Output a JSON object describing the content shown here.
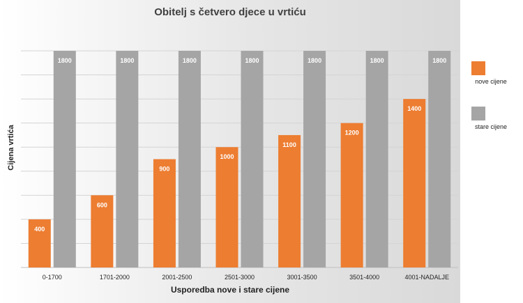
{
  "chart_data": {
    "type": "bar",
    "title": "Obitelj s četvero djece u vrtiću",
    "xlabel": "Usporedba nove i stare cijene",
    "ylabel": "Cijena vrtića",
    "categories": [
      "0-1700",
      "1701-2000",
      "2001-2500",
      "2501-3000",
      "3001-3500",
      "3501-4000",
      "4001-NADALJE"
    ],
    "series": [
      {
        "name": "nove cijene",
        "values": [
          400,
          600,
          900,
          1000,
          1100,
          1200,
          1400
        ],
        "color": "#ED7D31"
      },
      {
        "name": "stare cijene",
        "values": [
          1800,
          1800,
          1800,
          1800,
          1800,
          1800,
          1800
        ],
        "color": "#A5A5A5"
      }
    ],
    "ylim": [
      0,
      1800
    ],
    "grid": true,
    "data_labels": true,
    "legend_position": "right"
  }
}
